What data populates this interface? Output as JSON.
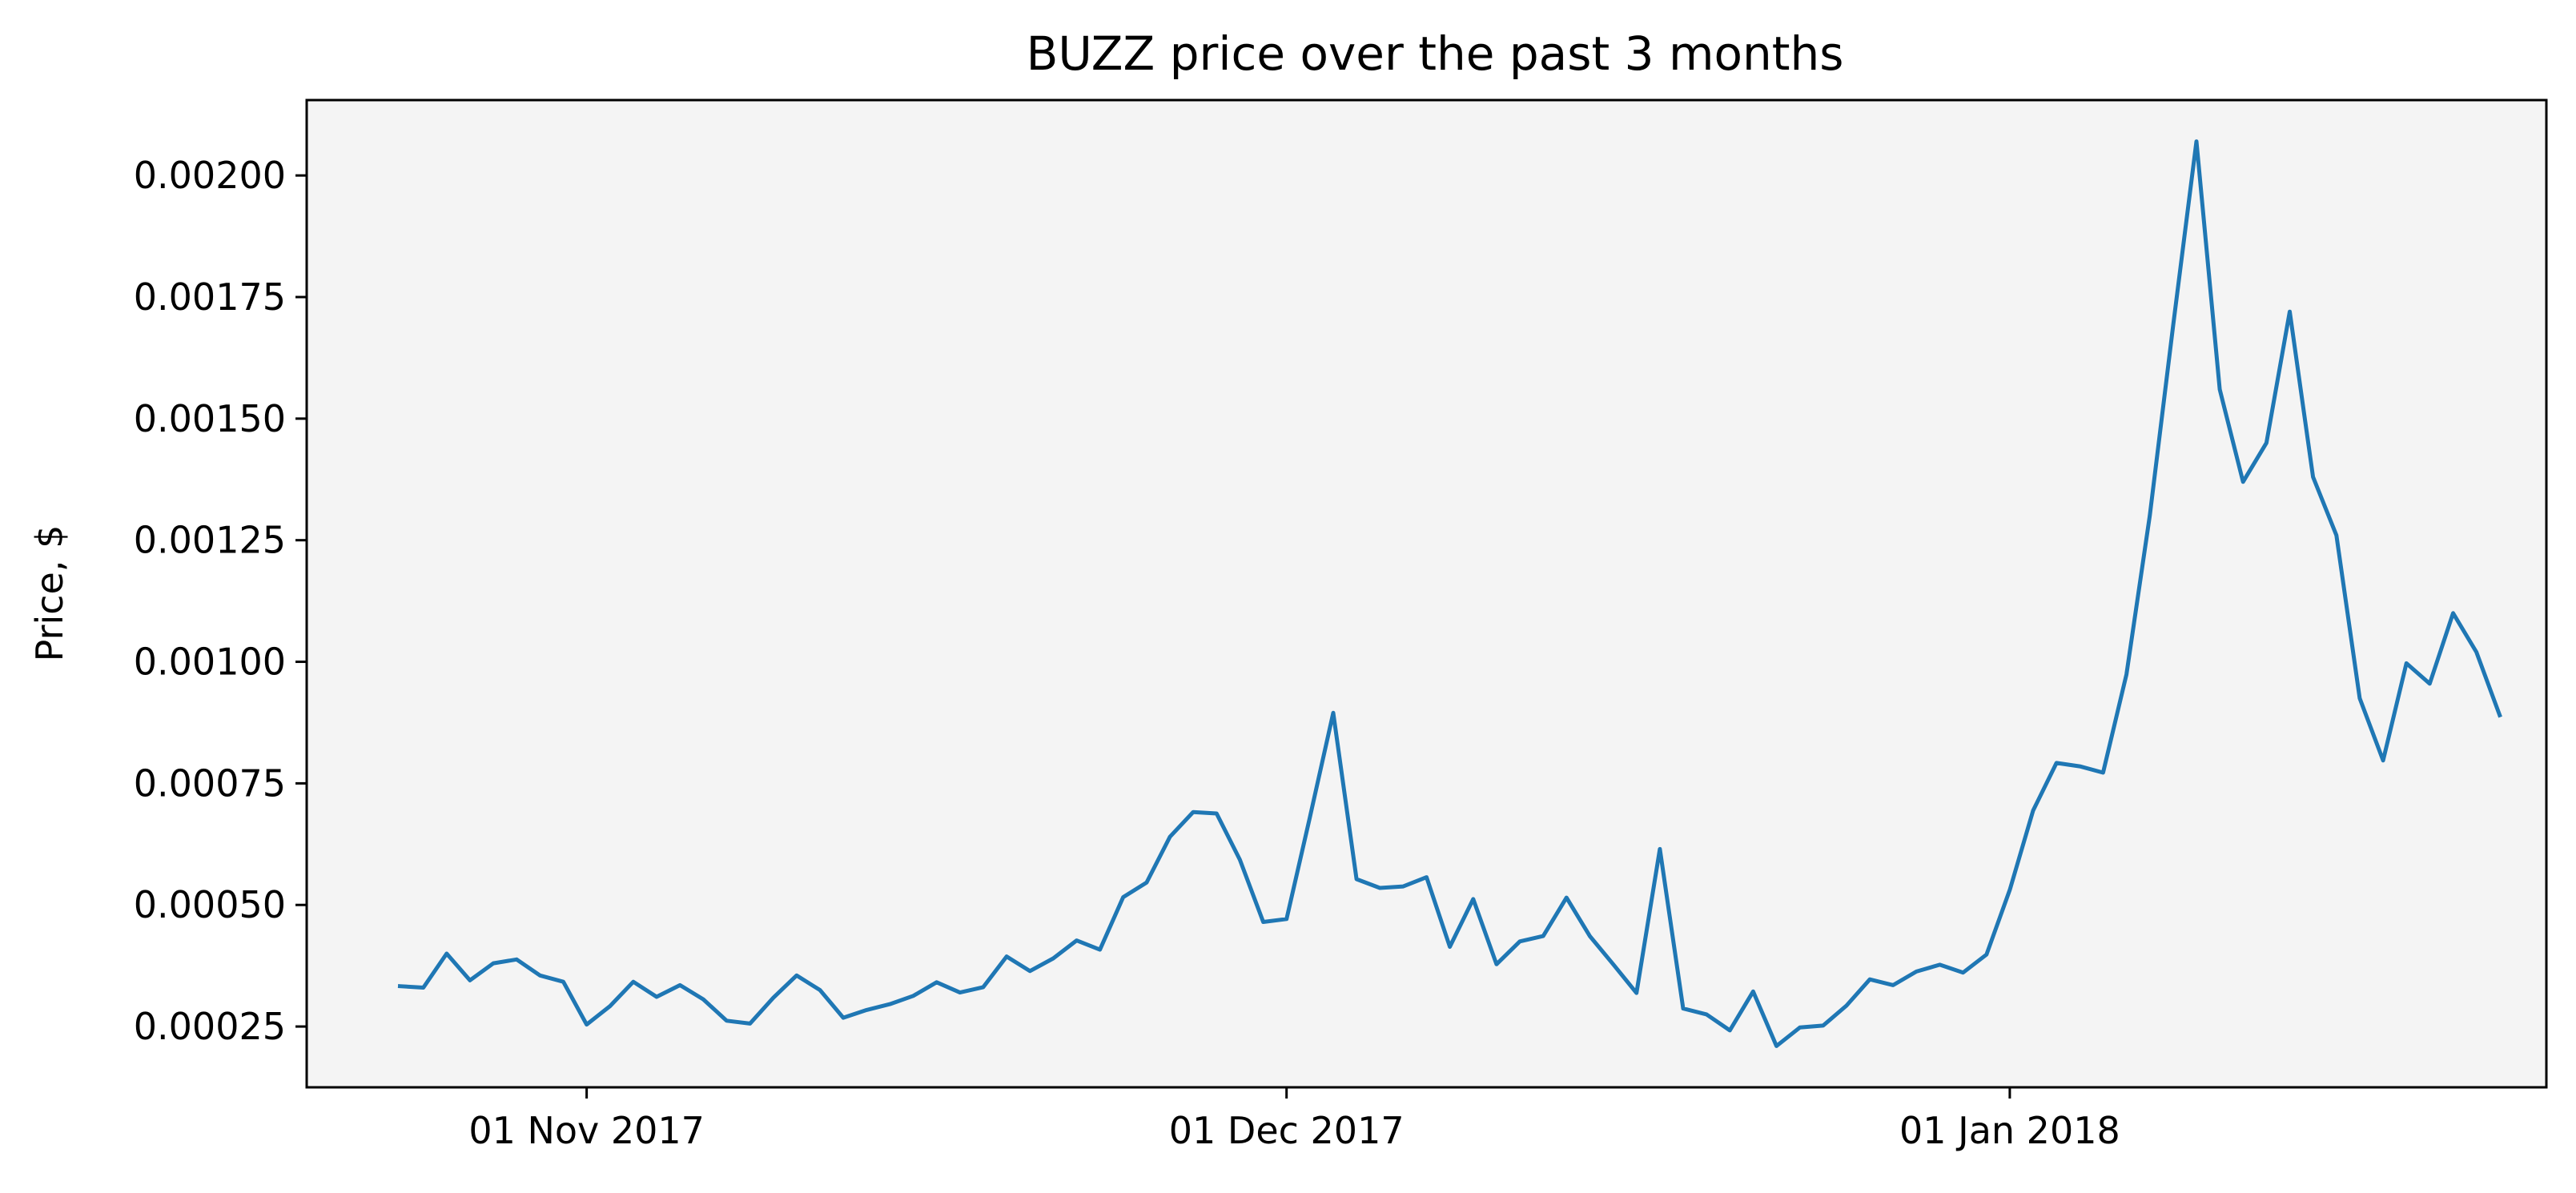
{
  "chart_data": {
    "type": "line",
    "title": "BUZZ price over the past 3 months",
    "xlabel": "",
    "ylabel": "Price, $",
    "grid": false,
    "legend": "none",
    "background": "#f4f4f4",
    "line_color": "#1f77b4",
    "xlim": [
      "2017-10-20",
      "2018-01-24"
    ],
    "ylim": [
      0.000125,
      0.002155
    ],
    "x_ticks": [
      {
        "date": "2017-11-01",
        "label": "01 Nov 2017"
      },
      {
        "date": "2017-12-01",
        "label": "01 Dec 2017"
      },
      {
        "date": "2018-01-01",
        "label": "01 Jan 2018"
      }
    ],
    "y_ticks": [
      {
        "value": 0.00025,
        "label": "0.00025"
      },
      {
        "value": 0.0005,
        "label": "0.00050"
      },
      {
        "value": 0.00075,
        "label": "0.00075"
      },
      {
        "value": 0.001,
        "label": "0.00100"
      },
      {
        "value": 0.00125,
        "label": "0.00125"
      },
      {
        "value": 0.0015,
        "label": "0.00150"
      },
      {
        "value": 0.00175,
        "label": "0.00175"
      },
      {
        "value": 0.002,
        "label": "0.00200"
      }
    ],
    "series": [
      {
        "x": [
          "2017-10-24",
          "2017-10-25",
          "2017-10-26",
          "2017-10-27",
          "2017-10-28",
          "2017-10-29",
          "2017-10-30",
          "2017-10-31",
          "2017-11-01",
          "2017-11-02",
          "2017-11-03",
          "2017-11-04",
          "2017-11-05",
          "2017-11-06",
          "2017-11-07",
          "2017-11-08",
          "2017-11-09",
          "2017-11-10",
          "2017-11-11",
          "2017-11-12",
          "2017-11-13",
          "2017-11-14",
          "2017-11-15",
          "2017-11-16",
          "2017-11-17",
          "2017-11-18",
          "2017-11-19",
          "2017-11-20",
          "2017-11-21",
          "2017-11-22",
          "2017-11-23",
          "2017-11-24",
          "2017-11-25",
          "2017-11-26",
          "2017-11-27",
          "2017-11-28",
          "2017-11-29",
          "2017-11-30",
          "2017-12-01",
          "2017-12-02",
          "2017-12-03",
          "2017-12-04",
          "2017-12-05",
          "2017-12-06",
          "2017-12-07",
          "2017-12-08",
          "2017-12-09",
          "2017-12-10",
          "2017-12-11",
          "2017-12-12",
          "2017-12-13",
          "2017-12-14",
          "2017-12-15",
          "2017-12-16",
          "2017-12-17",
          "2017-12-18",
          "2017-12-19",
          "2017-12-20",
          "2017-12-21",
          "2017-12-22",
          "2017-12-23",
          "2017-12-24",
          "2017-12-25",
          "2017-12-26",
          "2017-12-27",
          "2017-12-28",
          "2017-12-29",
          "2017-12-30",
          "2017-12-31",
          "2018-01-01",
          "2018-01-02",
          "2018-01-03",
          "2018-01-04",
          "2018-01-05",
          "2018-01-06",
          "2018-01-07",
          "2018-01-08",
          "2018-01-09",
          "2018-01-10",
          "2018-01-11",
          "2018-01-12",
          "2018-01-13",
          "2018-01-14",
          "2018-01-15",
          "2018-01-16",
          "2018-01-17",
          "2018-01-18",
          "2018-01-19",
          "2018-01-20",
          "2018-01-21",
          "2018-01-22"
        ],
        "y": [
          0.000333,
          0.00033,
          0.0004,
          0.000345,
          0.00038,
          0.000388,
          0.000355,
          0.000342,
          0.000254,
          0.000292,
          0.000342,
          0.000311,
          0.000335,
          0.000306,
          0.000262,
          0.000256,
          0.000309,
          0.000355,
          0.000325,
          0.000268,
          0.000284,
          0.000296,
          0.000313,
          0.000341,
          0.00032,
          0.000331,
          0.000394,
          0.000364,
          0.00039,
          0.000427,
          0.000408,
          0.000516,
          0.000546,
          0.00064,
          0.000691,
          0.000688,
          0.000593,
          0.000465,
          0.000471,
          0.00068,
          0.000895,
          0.000553,
          0.000535,
          0.000538,
          0.000557,
          0.000414,
          0.000512,
          0.000378,
          0.000425,
          0.000436,
          0.000515,
          0.000436,
          0.000378,
          0.000319,
          0.000615,
          0.000287,
          0.000275,
          0.000242,
          0.000322,
          0.00021,
          0.000248,
          0.000252,
          0.000293,
          0.000347,
          0.000335,
          0.000363,
          0.000377,
          0.000361,
          0.000398,
          0.000531,
          0.000694,
          0.000792,
          0.000785,
          0.000772,
          0.000974,
          0.0013,
          0.00169,
          0.00207,
          0.00156,
          0.00137,
          0.00145,
          0.00172,
          0.00138,
          0.00126,
          0.000925,
          0.000797,
          0.000997,
          0.000955,
          0.0011,
          0.00102,
          0.00089
        ]
      }
    ]
  }
}
